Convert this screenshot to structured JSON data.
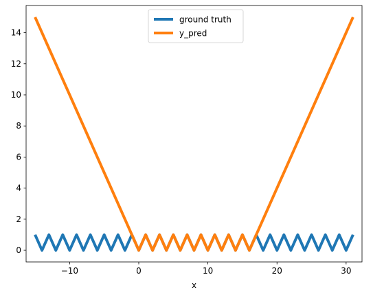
{
  "chart_data": {
    "type": "line",
    "title": "",
    "xlabel": "x",
    "ylabel": "",
    "xlim": [
      -16.3,
      32.3
    ],
    "ylim": [
      -0.75,
      15.75
    ],
    "xticks": [
      -10,
      0,
      10,
      20,
      30
    ],
    "xtick_labels": [
      "−10",
      "0",
      "10",
      "20",
      "30"
    ],
    "yticks": [
      0,
      2,
      4,
      6,
      8,
      10,
      12,
      14
    ],
    "ytick_labels": [
      "0",
      "2",
      "4",
      "6",
      "8",
      "10",
      "12",
      "14"
    ],
    "grid": false,
    "legend_position": "upper center",
    "series": [
      {
        "name": "ground truth",
        "color": "#1f77b4",
        "description": "triangle wave, period 2, amplitude 0 to 1",
        "x": [
          -15,
          -14,
          -13,
          -12,
          -11,
          -10,
          -9,
          -8,
          -7,
          -6,
          -5,
          -4,
          -3,
          -2,
          -1,
          0,
          1,
          2,
          3,
          4,
          5,
          6,
          7,
          8,
          9,
          10,
          11,
          12,
          13,
          14,
          15,
          16,
          17,
          18,
          19,
          20,
          21,
          22,
          23,
          24,
          25,
          26,
          27,
          28,
          29,
          30,
          31
        ],
        "y": [
          1,
          0,
          1,
          0,
          1,
          0,
          1,
          0,
          1,
          0,
          1,
          0,
          1,
          0,
          1,
          0,
          1,
          0,
          1,
          0,
          1,
          0,
          1,
          0,
          1,
          0,
          1,
          0,
          1,
          0,
          1,
          0,
          1,
          0,
          1,
          0,
          1,
          0,
          1,
          0,
          1,
          0,
          1,
          0,
          1,
          0,
          1
        ]
      },
      {
        "name": "y_pred",
        "color": "#ff7f0e",
        "description": "extrapolates linearly outside training range [0,16]",
        "x": [
          -15,
          -14,
          -13,
          -12,
          -11,
          -10,
          -9,
          -8,
          -7,
          -6,
          -5,
          -4,
          -3,
          -2,
          -1,
          0,
          1,
          2,
          3,
          4,
          5,
          6,
          7,
          8,
          9,
          10,
          11,
          12,
          13,
          14,
          15,
          16,
          17,
          18,
          19,
          20,
          21,
          22,
          23,
          24,
          25,
          26,
          27,
          28,
          29,
          30,
          31
        ],
        "y": [
          15,
          14,
          13,
          12,
          11,
          10,
          9,
          8,
          7,
          6,
          5,
          4,
          3,
          2,
          1,
          0,
          1,
          0,
          1,
          0,
          1,
          0,
          1,
          0,
          1,
          0,
          1,
          0,
          1,
          0,
          1,
          0,
          1,
          2,
          3,
          4,
          5,
          6,
          7,
          8,
          9,
          10,
          11,
          12,
          13,
          14,
          15
        ]
      }
    ]
  }
}
